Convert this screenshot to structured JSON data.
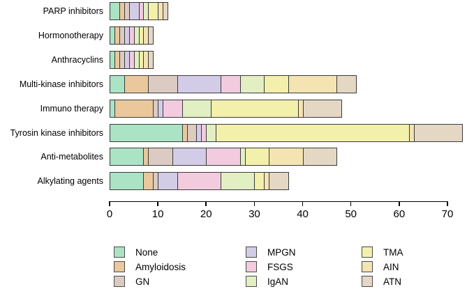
{
  "figure": {
    "background": "#ffffff",
    "bar_border_color": "#3a3a3a",
    "text_color": "#000000"
  },
  "chart_data": {
    "type": "bar",
    "orientation": "horizontal",
    "stacked": true,
    "title": "",
    "xlabel": "",
    "ylabel": "",
    "grid": false,
    "legend_position": "bottom",
    "xlim": [
      0,
      70
    ],
    "xticks": [
      "0",
      "10",
      "20",
      "30",
      "40",
      "50",
      "60",
      "70"
    ],
    "categories": [
      "PARP inhibitors",
      "Hormonotherapy",
      "Anthracyclins",
      "Multi-kinase inhibitors",
      "Immuno therapy",
      "Tyrosin kinase inhibitors",
      "Anti-metabolites",
      "Alkylating agents"
    ],
    "category_totals": [
      12,
      9,
      9,
      51,
      48,
      73,
      47,
      37
    ],
    "series": [
      {
        "name": "None",
        "color": "#abe3c5",
        "values": [
          2,
          1,
          1,
          3,
          1,
          15,
          7,
          7
        ]
      },
      {
        "name": "Amyloidosis",
        "color": "#ebc89b",
        "values": [
          1,
          1,
          1,
          5,
          8,
          1,
          1,
          2
        ]
      },
      {
        "name": "GN",
        "color": "#dccbc2",
        "values": [
          1,
          1,
          1,
          6,
          1,
          2,
          5,
          1
        ]
      },
      {
        "name": "MPGN",
        "color": "#d3cce7",
        "values": [
          2,
          1,
          1,
          9,
          1,
          1,
          7,
          4
        ]
      },
      {
        "name": "FSGS",
        "color": "#f2cbdf",
        "values": [
          1,
          1,
          1,
          4,
          4,
          1,
          7,
          9
        ]
      },
      {
        "name": "IgAN",
        "color": "#e1efc3",
        "values": [
          1,
          1,
          1,
          5,
          6,
          2,
          1,
          7
        ]
      },
      {
        "name": "TMA",
        "color": "#f2f0ab",
        "values": [
          2,
          1,
          1,
          5,
          18,
          40,
          5,
          2
        ]
      },
      {
        "name": "AIN",
        "color": "#f4e4b2",
        "values": [
          1,
          1,
          1,
          10,
          1,
          1,
          7,
          1
        ]
      },
      {
        "name": "ATN",
        "color": "#e4d7c4",
        "values": [
          1,
          1,
          1,
          4,
          8,
          10,
          7,
          4
        ]
      }
    ]
  }
}
